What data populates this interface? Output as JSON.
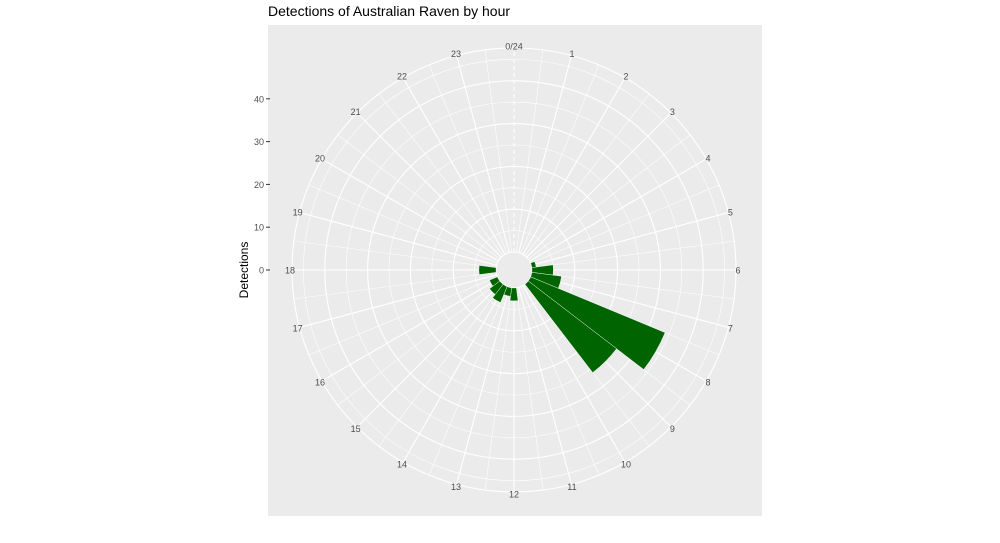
{
  "chart_data": {
    "type": "bar",
    "projection": "polar",
    "title": "Detections of Australian Raven by hour",
    "xlabel": "",
    "ylabel": "Detections",
    "x_tick_labels": [
      "0/24",
      "1",
      "2",
      "3",
      "4",
      "5",
      "6",
      "7",
      "8",
      "9",
      "10",
      "11",
      "12",
      "13",
      "14",
      "15",
      "16",
      "17",
      "18",
      "19",
      "20",
      "21",
      "22",
      "23"
    ],
    "y_ticks": [
      0,
      10,
      20,
      30,
      40
    ],
    "y_tick_labels": [
      "0",
      "10",
      "20",
      "30",
      "40"
    ],
    "categories": [
      0,
      1,
      2,
      3,
      4,
      5,
      6,
      7,
      8,
      9,
      10,
      11,
      12,
      13,
      14,
      15,
      16,
      17,
      18,
      19,
      20,
      21,
      22,
      23
    ],
    "values": [
      0,
      0,
      0,
      0,
      0,
      1,
      5,
      7,
      34,
      26,
      0,
      0,
      3,
      2,
      4,
      3,
      2,
      0,
      4,
      0,
      0,
      0,
      0,
      0
    ],
    "bar_color": "#006400",
    "panel_color": "#ebebeb",
    "grid_color": "#ffffff",
    "grid": true,
    "legend": "none"
  }
}
